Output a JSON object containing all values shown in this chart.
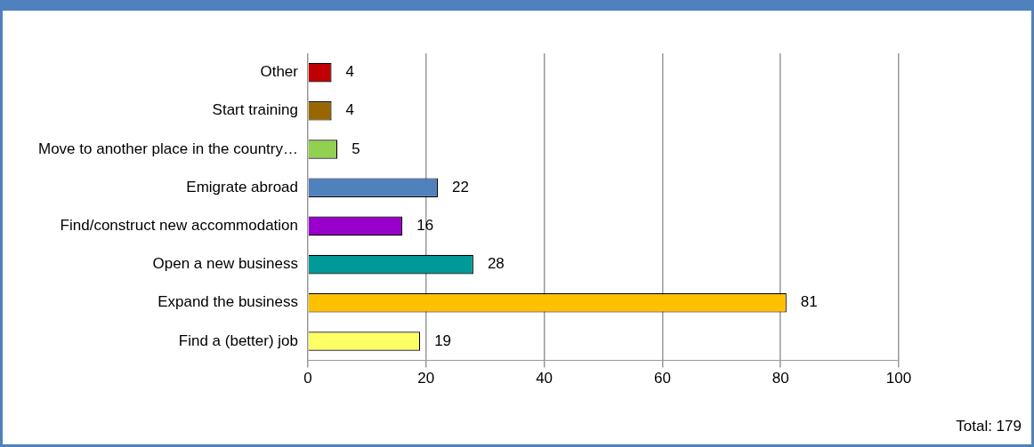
{
  "chart_data": {
    "type": "bar",
    "orientation": "horizontal",
    "categories": [
      "Other",
      "Start training",
      "Move to another place in the country…",
      "Emigrate abroad",
      "Find/construct new accommodation",
      "Open a new business",
      "Expand the business",
      "Find a (better) job"
    ],
    "values": [
      4,
      4,
      5,
      22,
      16,
      28,
      81,
      19
    ],
    "colors": [
      "#c00000",
      "#996600",
      "#92d050",
      "#4f81bd",
      "#9900cc",
      "#009999",
      "#ffc000",
      "#ffff66"
    ],
    "xlim": [
      0,
      100
    ],
    "xticks": [
      0,
      20,
      40,
      60,
      80,
      100
    ],
    "grid": "x",
    "legend": false,
    "data_labels": true,
    "annotations": [
      "Total: 179"
    ]
  }
}
